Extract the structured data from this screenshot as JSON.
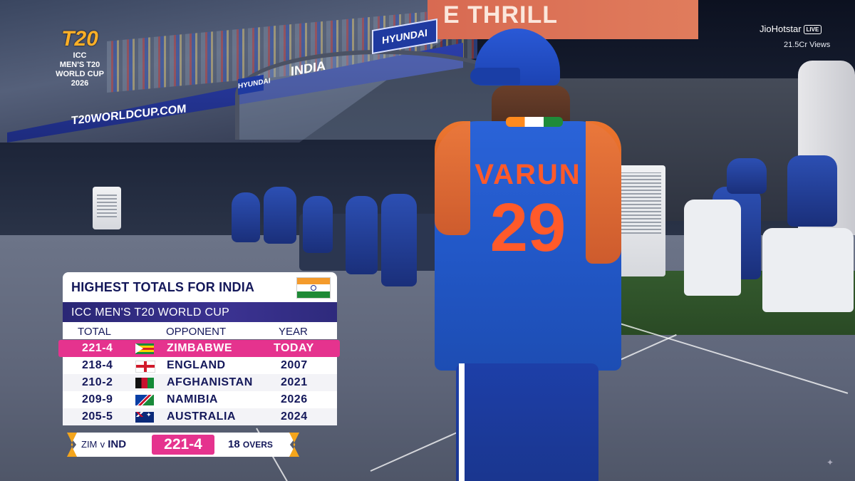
{
  "watermark": {
    "event_mark": "T20",
    "event_line1": "ICC",
    "event_line2": "MEN'S T20",
    "event_line3": "WORLD CUP",
    "event_year": "2026",
    "broadcaster": "JioHotstar",
    "live_badge": "LIVE",
    "views": "21.5Cr Views"
  },
  "background": {
    "banner_text": "E THRILL",
    "hyundai": "HYUNDAI",
    "india": "INDIA",
    "url": "T20WORLDCUP.COM"
  },
  "player": {
    "name": "VARUN",
    "number": "29"
  },
  "stats_card": {
    "title": "HIGHEST TOTALS FOR INDIA",
    "subtitle": "ICC MEN'S T20 WORLD CUP",
    "columns": {
      "total": "TOTAL",
      "opponent": "OPPONENT",
      "year": "YEAR"
    },
    "rows": [
      {
        "total": "221-4",
        "flag": "zimbabwe-flag-icon",
        "opponent": "ZIMBABWE",
        "year": "TODAY",
        "highlight": true
      },
      {
        "total": "218-4",
        "flag": "england-flag-icon",
        "opponent": "ENGLAND",
        "year": "2007"
      },
      {
        "total": "210-2",
        "flag": "afghanistan-flag-icon",
        "opponent": "AFGHANISTAN",
        "year": "2021"
      },
      {
        "total": "209-9",
        "flag": "namibia-flag-icon",
        "opponent": "NAMIBIA",
        "year": "2026"
      },
      {
        "total": "205-5",
        "flag": "australia-flag-icon",
        "opponent": "AUSTRALIA",
        "year": "2024"
      }
    ],
    "colors": {
      "header_bg": "#2a2775",
      "highlight": "#e5338e",
      "text": "#14185a"
    }
  },
  "scorebug": {
    "team1": "ZIM",
    "vs": "v",
    "team2": "IND",
    "score": "221-4",
    "overs": "18",
    "overs_label": "OVERS"
  }
}
